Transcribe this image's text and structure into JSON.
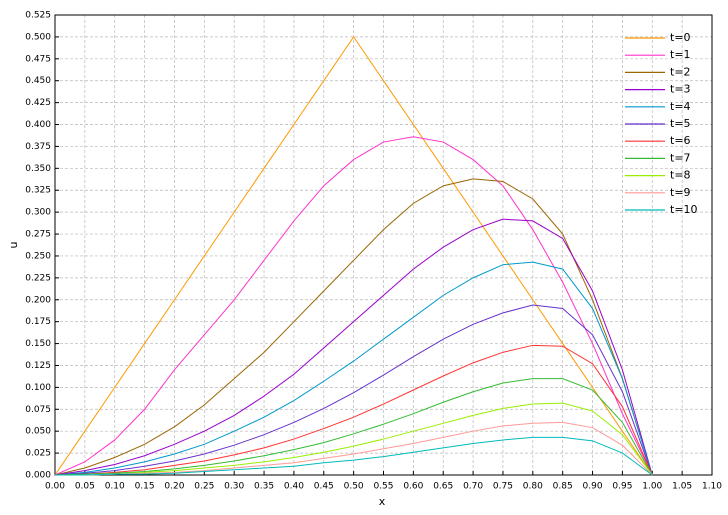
{
  "chart_data": {
    "type": "line",
    "xlabel": "x",
    "ylabel": "u",
    "x": [
      0,
      0.05,
      0.1,
      0.15,
      0.2,
      0.25,
      0.3,
      0.35,
      0.4,
      0.45,
      0.5,
      0.55,
      0.6,
      0.65,
      0.7,
      0.75,
      0.8,
      0.85,
      0.9,
      0.95,
      1.0
    ],
    "series": [
      {
        "name": "t=0",
        "color": "#ff9900",
        "values": [
          0,
          0.05,
          0.1,
          0.15,
          0.2,
          0.25,
          0.3,
          0.35,
          0.4,
          0.45,
          0.5,
          0.45,
          0.4,
          0.35,
          0.3,
          0.25,
          0.2,
          0.15,
          0.1,
          0.05,
          0
        ]
      },
      {
        "name": "t=1",
        "color": "#ff33cc",
        "values": [
          0,
          0.015,
          0.04,
          0.075,
          0.12,
          0.16,
          0.2,
          0.245,
          0.29,
          0.33,
          0.36,
          0.38,
          0.386,
          0.38,
          0.36,
          0.33,
          0.28,
          0.22,
          0.15,
          0.07,
          0
        ]
      },
      {
        "name": "t=2",
        "color": "#996600",
        "values": [
          0,
          0.008,
          0.02,
          0.035,
          0.055,
          0.08,
          0.11,
          0.14,
          0.175,
          0.21,
          0.245,
          0.28,
          0.31,
          0.33,
          0.338,
          0.335,
          0.315,
          0.275,
          0.2,
          0.11,
          0
        ]
      },
      {
        "name": "t=3",
        "color": "#9900cc",
        "values": [
          0,
          0.005,
          0.012,
          0.022,
          0.035,
          0.05,
          0.068,
          0.09,
          0.115,
          0.145,
          0.175,
          0.205,
          0.235,
          0.26,
          0.28,
          0.292,
          0.29,
          0.27,
          0.21,
          0.12,
          0
        ]
      },
      {
        "name": "t=4",
        "color": "#0099cc",
        "values": [
          0,
          0.003,
          0.008,
          0.015,
          0.024,
          0.035,
          0.05,
          0.066,
          0.085,
          0.107,
          0.13,
          0.155,
          0.18,
          0.205,
          0.225,
          0.24,
          0.243,
          0.235,
          0.19,
          0.11,
          0
        ]
      },
      {
        "name": "t=5",
        "color": "#6633cc",
        "values": [
          0,
          0.002,
          0.005,
          0.01,
          0.016,
          0.024,
          0.034,
          0.046,
          0.06,
          0.076,
          0.094,
          0.114,
          0.135,
          0.155,
          0.172,
          0.185,
          0.194,
          0.19,
          0.16,
          0.095,
          0
        ]
      },
      {
        "name": "t=6",
        "color": "#ff3333",
        "values": [
          0,
          0.001,
          0.003,
          0.006,
          0.011,
          0.016,
          0.023,
          0.031,
          0.041,
          0.053,
          0.066,
          0.081,
          0.097,
          0.113,
          0.128,
          0.14,
          0.148,
          0.147,
          0.127,
          0.078,
          0
        ]
      },
      {
        "name": "t=7",
        "color": "#33bb33",
        "values": [
          0,
          0.001,
          0.002,
          0.004,
          0.007,
          0.011,
          0.016,
          0.022,
          0.029,
          0.037,
          0.047,
          0.058,
          0.07,
          0.083,
          0.095,
          0.105,
          0.11,
          0.11,
          0.097,
          0.06,
          0
        ]
      },
      {
        "name": "t=8",
        "color": "#99ee00",
        "values": [
          0,
          0,
          0.001,
          0.003,
          0.005,
          0.008,
          0.011,
          0.015,
          0.02,
          0.026,
          0.033,
          0.041,
          0.05,
          0.059,
          0.068,
          0.076,
          0.081,
          0.082,
          0.073,
          0.046,
          0
        ]
      },
      {
        "name": "t=9",
        "color": "#ff9999",
        "values": [
          0,
          0,
          0.001,
          0.002,
          0.003,
          0.005,
          0.008,
          0.011,
          0.014,
          0.019,
          0.024,
          0.03,
          0.036,
          0.043,
          0.05,
          0.056,
          0.059,
          0.06,
          0.054,
          0.034,
          0
        ]
      },
      {
        "name": "t=10",
        "color": "#00bbbb",
        "values": [
          0,
          0,
          0.001,
          0.001,
          0.002,
          0.004,
          0.006,
          0.008,
          0.01,
          0.014,
          0.017,
          0.021,
          0.026,
          0.031,
          0.036,
          0.04,
          0.043,
          0.043,
          0.039,
          0.025,
          0
        ]
      }
    ],
    "xlim": [
      0,
      1.1
    ],
    "xticks": [
      {
        "value": 0,
        "label": "0.00"
      },
      {
        "value": 0.05,
        "label": "0.05"
      },
      {
        "value": 0.1,
        "label": "0.10"
      },
      {
        "value": 0.15,
        "label": "0.15"
      },
      {
        "value": 0.2,
        "label": "0.20"
      },
      {
        "value": 0.25,
        "label": "0.25"
      },
      {
        "value": 0.3,
        "label": "0.30"
      },
      {
        "value": 0.35,
        "label": "0.35"
      },
      {
        "value": 0.4,
        "label": "0.40"
      },
      {
        "value": 0.45,
        "label": "0.45"
      },
      {
        "value": 0.5,
        "label": "0.50"
      },
      {
        "value": 0.55,
        "label": "0.55"
      },
      {
        "value": 0.6,
        "label": "0.60"
      },
      {
        "value": 0.65,
        "label": "0.65"
      },
      {
        "value": 0.7,
        "label": "0.70"
      },
      {
        "value": 0.75,
        "label": "0.75"
      },
      {
        "value": 0.8,
        "label": "0.80"
      },
      {
        "value": 0.85,
        "label": "0.85"
      },
      {
        "value": 0.9,
        "label": "0.90"
      },
      {
        "value": 0.95,
        "label": "0.95"
      },
      {
        "value": 1.0,
        "label": "1.00"
      },
      {
        "value": 1.05,
        "label": "1.05"
      },
      {
        "value": 1.1,
        "label": "1.10"
      }
    ],
    "ylim": [
      0,
      0.525
    ],
    "yticks": [
      {
        "value": 0,
        "label": "0.000"
      },
      {
        "value": 0.025,
        "label": "0.025"
      },
      {
        "value": 0.05,
        "label": "0.050"
      },
      {
        "value": 0.075,
        "label": "0.075"
      },
      {
        "value": 0.1,
        "label": "0.100"
      },
      {
        "value": 0.125,
        "label": "0.125"
      },
      {
        "value": 0.15,
        "label": "0.150"
      },
      {
        "value": 0.175,
        "label": "0.175"
      },
      {
        "value": 0.2,
        "label": "0.200"
      },
      {
        "value": 0.225,
        "label": "0.225"
      },
      {
        "value": 0.25,
        "label": "0.250"
      },
      {
        "value": 0.275,
        "label": "0.275"
      },
      {
        "value": 0.3,
        "label": "0.300"
      },
      {
        "value": 0.325,
        "label": "0.325"
      },
      {
        "value": 0.35,
        "label": "0.350"
      },
      {
        "value": 0.375,
        "label": "0.375"
      },
      {
        "value": 0.4,
        "label": "0.400"
      },
      {
        "value": 0.425,
        "label": "0.425"
      },
      {
        "value": 0.45,
        "label": "0.450"
      },
      {
        "value": 0.475,
        "label": "0.475"
      },
      {
        "value": 0.5,
        "label": "0.500"
      },
      {
        "value": 0.525,
        "label": "0.525"
      }
    ],
    "grid": true,
    "legend": "upper right"
  }
}
